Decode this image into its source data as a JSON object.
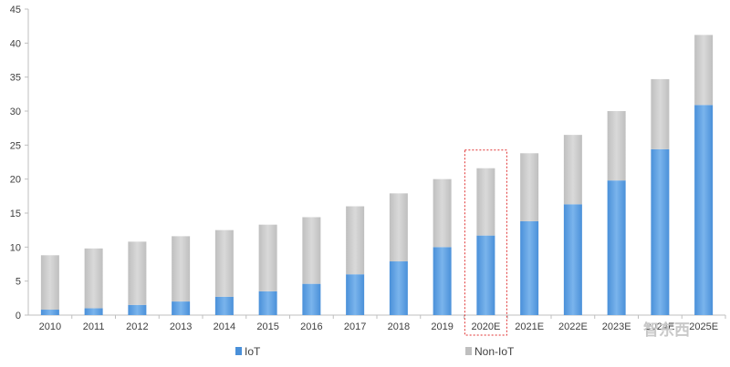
{
  "chart_data": {
    "type": "bar",
    "stacked": true,
    "categories": [
      "2010",
      "2011",
      "2012",
      "2013",
      "2014",
      "2015",
      "2016",
      "2017",
      "2018",
      "2019",
      "2020E",
      "2021E",
      "2022E",
      "2023E",
      "2024E",
      "2025E"
    ],
    "series": [
      {
        "name": "IoT",
        "color": "#4a90d9",
        "values": [
          0.8,
          1.0,
          1.5,
          2.0,
          2.7,
          3.5,
          4.6,
          6.0,
          7.9,
          10.0,
          11.7,
          13.8,
          16.3,
          19.8,
          24.4,
          30.9
        ]
      },
      {
        "name": "Non-IoT",
        "color": "#bfbfbf",
        "values": [
          8.0,
          8.8,
          9.3,
          9.6,
          9.8,
          9.8,
          9.8,
          10.0,
          10.0,
          10.0,
          9.9,
          10.0,
          10.2,
          10.2,
          10.3,
          10.3
        ]
      }
    ],
    "ylim": [
      0,
      45
    ],
    "yticks": [
      0,
      5,
      10,
      15,
      20,
      25,
      30,
      35,
      40,
      45
    ],
    "title": "",
    "xlabel": "",
    "ylabel": "",
    "legend_position": "bottom",
    "highlight_category": "2020E",
    "highlight_color": "#e03030",
    "watermark": "智东西"
  }
}
